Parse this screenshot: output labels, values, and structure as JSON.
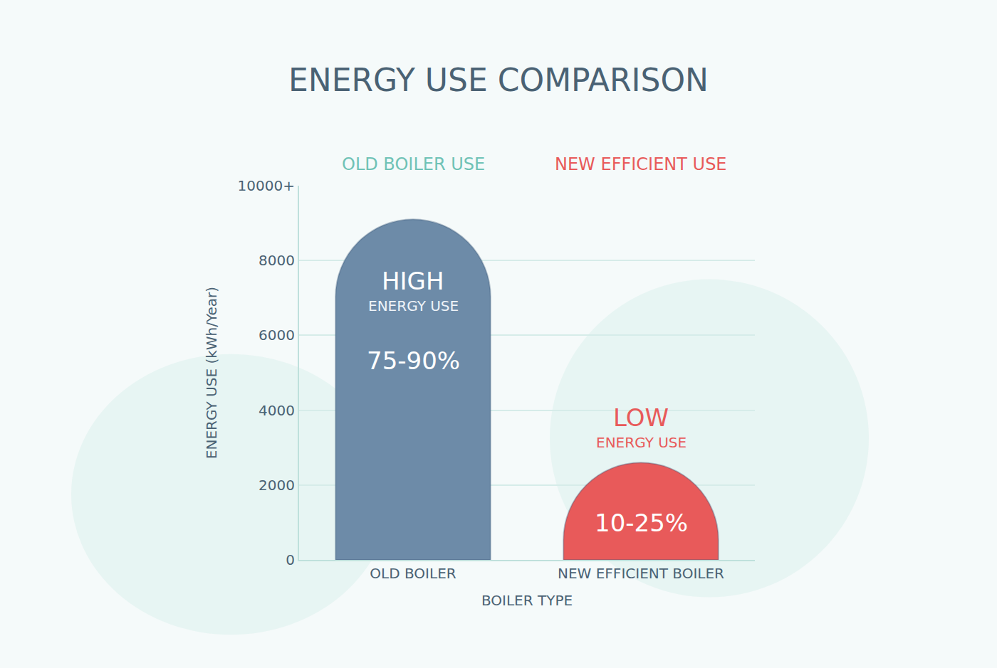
{
  "chart_data": {
    "type": "bar",
    "title": "ENERGY USE COMPARISON",
    "x_label": "BOILER TYPE",
    "y_label": "ENERGY USE (kWh/Year)",
    "categories": [
      "OLD BOILER",
      "NEW EFFICIENT BOILER"
    ],
    "series": [
      {
        "name": "OLD BOILER USE",
        "color": "#6d8ba8",
        "values": [
          9100,
          null
        ]
      },
      {
        "name": "NEW EFFICIENT USE",
        "color": "#e85a5a",
        "values": [
          null,
          2600
        ]
      }
    ],
    "annotations": [
      {
        "category": "OLD BOILER",
        "lines": [
          "HIGH",
          "ENERGY USE",
          "75-90%"
        ]
      },
      {
        "category": "NEW EFFICIENT BOILER",
        "lines": [
          "LOW",
          "ENERGY USE",
          "10-25%"
        ]
      }
    ],
    "ylim": [
      0,
      10000
    ],
    "yticks": [
      0,
      2000,
      4000,
      6000,
      8000,
      {
        "value": 10000,
        "label": "10000+"
      }
    ],
    "grid": true
  }
}
